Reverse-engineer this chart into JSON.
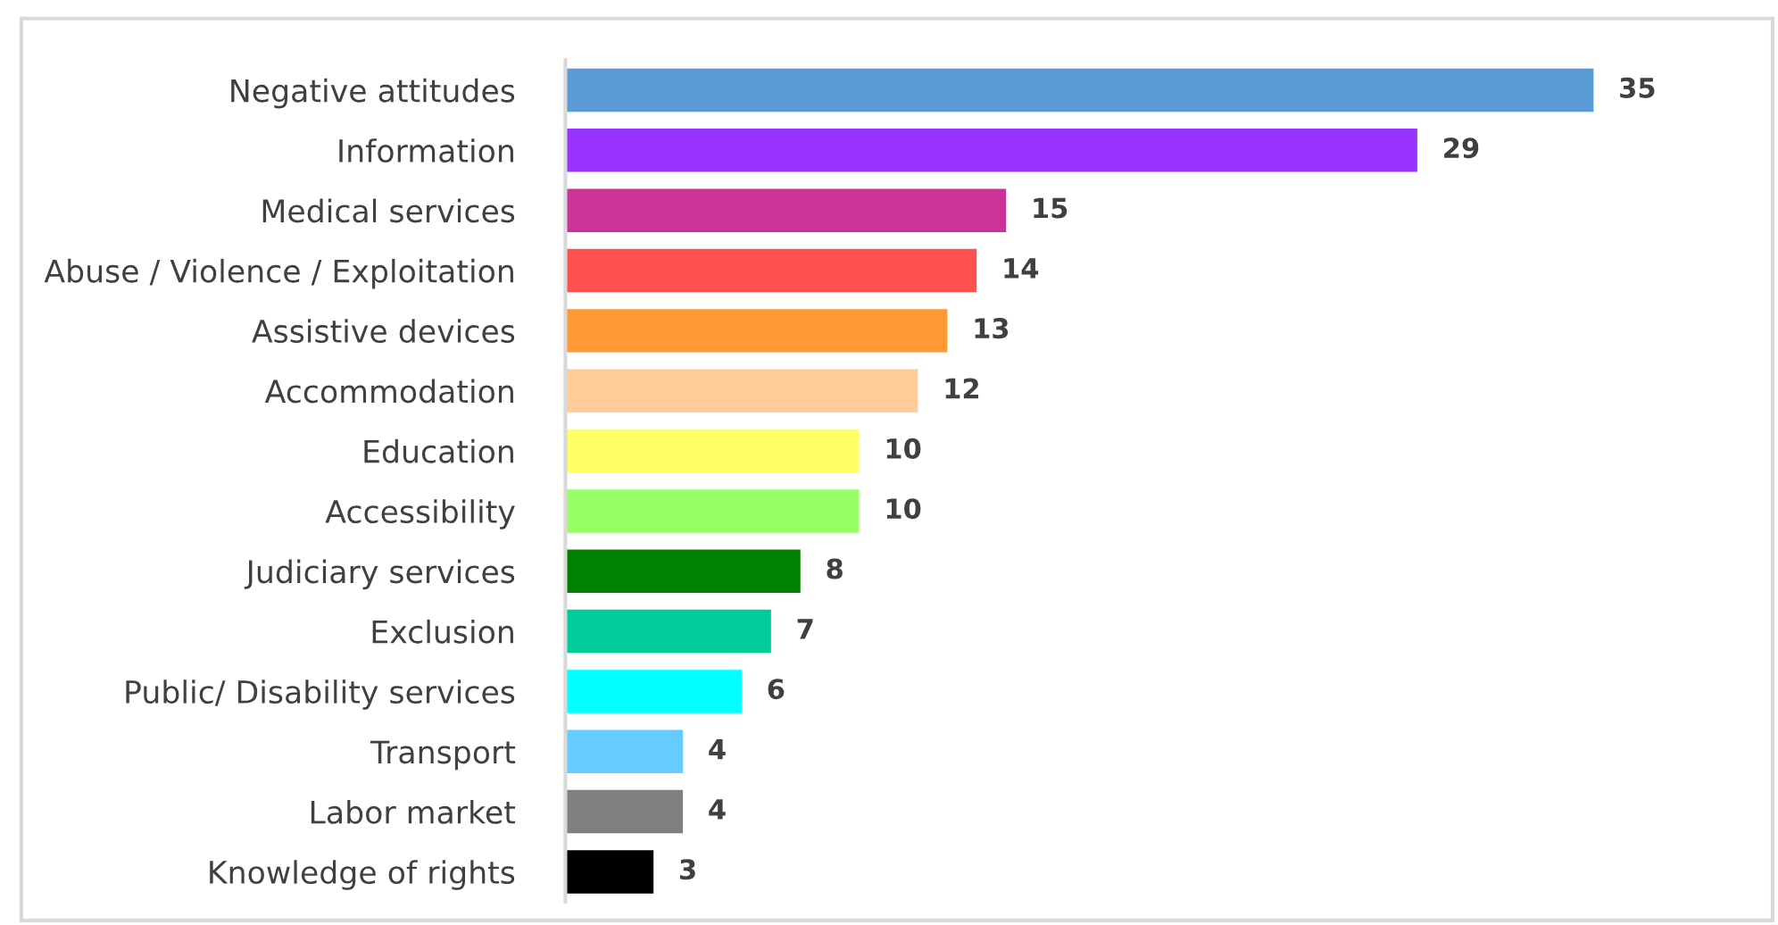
{
  "chart_data": {
    "type": "bar",
    "orientation": "horizontal",
    "categories": [
      "Negative attitudes",
      "Information",
      "Medical services",
      "Abuse / Violence / Exploitation",
      "Assistive devices",
      "Accommodation",
      "Education",
      "Accessibility",
      "Judiciary services",
      "Exclusion",
      "Public/ Disability services",
      "Transport",
      "Labor market",
      "Knowledge of rights"
    ],
    "values": [
      35,
      29,
      15,
      14,
      13,
      12,
      10,
      10,
      8,
      7,
      6,
      4,
      4,
      3
    ],
    "colors": [
      "#5b9bd5",
      "#9933ff",
      "#cc3399",
      "#ff5050",
      "#ff9933",
      "#ffcc99",
      "#ffff66",
      "#99ff66",
      "#008000",
      "#00cc99",
      "#00ffff",
      "#66ccff",
      "#808080",
      "#000000"
    ],
    "data_labels": true,
    "tick_labels": "y",
    "grid": false,
    "legend": false
  }
}
